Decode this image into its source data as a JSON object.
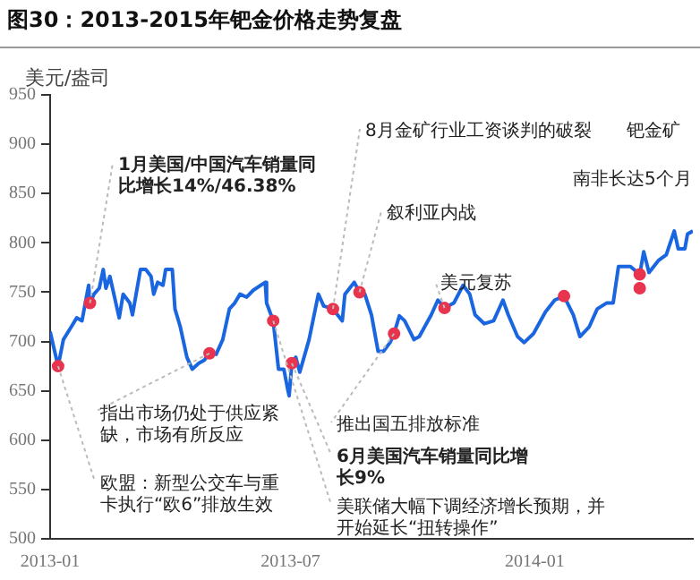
{
  "chart_data": {
    "type": "line",
    "title": "图30：2013-2015年钯金价格走势复盘",
    "ylabel": "美元/盎司",
    "xlim": [
      "2013-01-01",
      "2014-04-30"
    ],
    "xticks": [
      "2013-01",
      "2013-07",
      "2014-01"
    ],
    "ylim": [
      500,
      950
    ],
    "yticks": [
      500,
      550,
      600,
      650,
      700,
      750,
      800,
      850,
      900,
      950
    ],
    "grid": false,
    "legend": false,
    "series": [
      {
        "type": "line",
        "color": "#1a66e0",
        "marker": "none",
        "x": [
          "2013-01-01",
          "2013-01-07",
          "2013-01-11",
          "2013-01-17",
          "2013-01-21",
          "2013-01-25",
          "2013-01-30",
          "2013-01-31",
          "2013-02-03",
          "2013-02-07",
          "2013-02-10",
          "2013-02-12",
          "2013-02-15",
          "2013-02-22",
          "2013-02-25",
          "2013-03-02",
          "2013-03-04",
          "2013-03-10",
          "2013-03-14",
          "2013-03-18",
          "2013-03-20",
          "2013-03-23",
          "2013-03-27",
          "2013-03-29",
          "2013-04-03",
          "2013-04-05",
          "2013-04-09",
          "2013-04-14",
          "2013-04-18",
          "2013-04-23",
          "2013-04-27",
          "2013-05-01",
          "2013-05-06",
          "2013-05-11",
          "2013-05-16",
          "2013-05-20",
          "2013-05-24",
          "2013-05-29",
          "2013-06-03",
          "2013-06-12",
          "2013-06-13",
          "2013-06-18",
          "2013-06-22",
          "2013-06-26",
          "2013-06-29",
          "2013-06-30",
          "2013-07-02",
          "2013-07-05",
          "2013-07-08",
          "2013-07-15",
          "2013-07-22",
          "2013-07-26",
          "2013-08-02",
          "2013-08-09",
          "2013-08-11",
          "2013-08-18",
          "2013-08-22",
          "2013-08-26",
          "2013-08-31",
          "2013-09-05",
          "2013-09-09",
          "2013-09-14",
          "2013-09-17",
          "2013-09-21",
          "2013-09-25",
          "2013-10-02",
          "2013-10-06",
          "2013-10-15",
          "2013-10-20",
          "2013-10-25",
          "2013-11-01",
          "2013-11-08",
          "2013-11-13",
          "2013-11-17",
          "2013-11-24",
          "2013-12-01",
          "2013-12-08",
          "2013-12-12",
          "2013-12-19",
          "2013-12-24",
          "2013-12-31",
          "2014-01-09",
          "2014-01-16",
          "2014-01-23",
          "2014-01-30",
          "2014-02-04",
          "2014-02-11",
          "2014-02-17",
          "2014-02-24",
          "2014-03-01",
          "2014-03-05",
          "2014-03-14",
          "2014-03-21",
          "2014-03-24",
          "2014-03-28",
          "2014-04-04",
          "2014-04-10",
          "2014-04-16",
          "2014-04-19",
          "2014-04-24",
          "2014-04-26",
          "2014-04-30"
        ],
        "values": [
          710,
          675,
          702,
          715,
          724,
          721,
          757,
          739,
          748,
          754,
          773,
          754,
          766,
          724,
          748,
          739,
          727,
          773,
          773,
          766,
          748,
          760,
          757,
          773,
          773,
          733,
          715,
          684,
          672,
          678,
          681,
          688,
          687,
          702,
          733,
          739,
          748,
          745,
          752,
          760,
          739,
          721,
          672,
          672,
          651,
          645,
          678,
          684,
          669,
          702,
          748,
          736,
          733,
          721,
          748,
          760,
          750,
          748,
          727,
          690,
          690,
          699,
          708,
          726,
          721,
          702,
          705,
          727,
          742,
          734,
          739,
          757,
          748,
          727,
          718,
          721,
          742,
          727,
          705,
          699,
          708,
          730,
          742,
          746,
          727,
          705,
          715,
          733,
          739,
          739,
          776,
          776,
          768,
          791,
          770,
          782,
          788,
          812,
          794,
          794,
          809,
          812
        ]
      },
      {
        "type": "scatter",
        "color": "#e8344e",
        "marker": "circle",
        "x": [
          "2013-01-07",
          "2013-01-31",
          "2013-05-01",
          "2013-06-18",
          "2013-07-02",
          "2013-08-02",
          "2013-08-22",
          "2013-09-17",
          "2013-10-25",
          "2014-01-23",
          "2014-03-21",
          "2014-03-21"
        ],
        "values": [
          675,
          739,
          688,
          721,
          678,
          733,
          750,
          708,
          734,
          746,
          768,
          754
        ]
      }
    ],
    "annotations": [
      {
        "text": "1月美国/中国汽车销量同比增长14%/46.38%",
        "x": "2013-01-31",
        "y": 739
      },
      {
        "text": "指出市场仍处于供应紧缺，市场有所反应",
        "x": "2013-05-01",
        "y": 688
      },
      {
        "text": "欧盟：新型公交车与重卡执行“欧6”排放生效",
        "x": "2013-01-07",
        "y": 675
      },
      {
        "text": "8月金矿行业工资谈判的破裂",
        "x": "2013-08-02",
        "y": 733
      },
      "钯金矿",
      "南非长达5个月",
      {
        "text": "叙利亚内战",
        "x": "2013-08-22",
        "y": 750
      },
      {
        "text": "美元复苏",
        "x": "2013-10-25",
        "y": 734
      },
      {
        "text": "推出国五排放标准",
        "x": "2013-09-17",
        "y": 708
      },
      {
        "text": "6月美国汽车销量同比增长9%",
        "x": "2013-07-02",
        "y": 678
      },
      {
        "text": "美联储大幅下调经济增长预期，并开始延长“扭转操作”",
        "x": "2013-06-18",
        "y": 721
      }
    ]
  }
}
